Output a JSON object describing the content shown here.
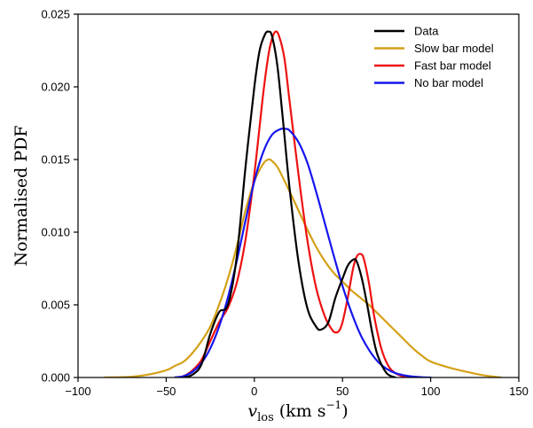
{
  "chart_data": {
    "type": "line",
    "xlabel": "v_los (km s⁻¹)",
    "xlabel_parts": {
      "symbol": "v",
      "subscript": "los",
      "unit_open": "(km s",
      "exponent": "−1",
      "unit_close": ")"
    },
    "ylabel": "Normalised PDF",
    "xlim": [
      -100,
      150
    ],
    "ylim": [
      0,
      0.025
    ],
    "x_ticks": [
      -100,
      -50,
      0,
      50,
      100,
      150
    ],
    "x_tick_labels": [
      "−100",
      "−50",
      "0",
      "50",
      "100",
      "150"
    ],
    "y_ticks": [
      0,
      0.005,
      0.01,
      0.015,
      0.02,
      0.025
    ],
    "y_tick_labels": [
      "0.000",
      "0.005",
      "0.010",
      "0.015",
      "0.020",
      "0.025"
    ],
    "grid": false,
    "legend_position": "top-right",
    "series": [
      {
        "name": "Data",
        "color": "#000000",
        "x": [
          -40,
          -35,
          -30,
          -25,
          -20,
          -15,
          -10,
          -5,
          0,
          3,
          6,
          8,
          10,
          13,
          16,
          20,
          25,
          30,
          35,
          38,
          42,
          46,
          50,
          53,
          56,
          58,
          61,
          64,
          67,
          70,
          75,
          80
        ],
        "y": [
          0,
          0.0002,
          0.0009,
          0.003,
          0.0045,
          0.005,
          0.0083,
          0.0145,
          0.02,
          0.0225,
          0.0236,
          0.0238,
          0.0235,
          0.0215,
          0.018,
          0.013,
          0.008,
          0.0048,
          0.0035,
          0.0033,
          0.0038,
          0.0055,
          0.0068,
          0.0077,
          0.0081,
          0.008,
          0.0068,
          0.005,
          0.003,
          0.0015,
          0.0003,
          0
        ]
      },
      {
        "name": "Slow bar model",
        "color": "#d4a017",
        "x": [
          -85,
          -70,
          -60,
          -50,
          -45,
          -40,
          -35,
          -30,
          -25,
          -20,
          -15,
          -10,
          -5,
          0,
          5,
          8,
          10,
          13,
          16,
          20,
          25,
          30,
          35,
          40,
          45,
          50,
          55,
          60,
          65,
          70,
          75,
          80,
          85,
          90,
          95,
          100,
          110,
          120,
          130,
          140
        ],
        "y": [
          0,
          5e-05,
          0.0002,
          0.0005,
          0.0008,
          0.0011,
          0.0017,
          0.0025,
          0.0035,
          0.005,
          0.0068,
          0.009,
          0.0115,
          0.0135,
          0.0147,
          0.015,
          0.0149,
          0.0145,
          0.0138,
          0.0128,
          0.0115,
          0.0102,
          0.009,
          0.008,
          0.0072,
          0.0066,
          0.006,
          0.0055,
          0.005,
          0.0044,
          0.0038,
          0.0032,
          0.0026,
          0.002,
          0.0015,
          0.0011,
          0.0007,
          0.0004,
          0.00015,
          0
        ]
      },
      {
        "name": "Fast bar model",
        "color": "#ee1111",
        "x": [
          -45,
          -40,
          -35,
          -30,
          -25,
          -20,
          -15,
          -10,
          -5,
          0,
          5,
          8,
          10,
          12,
          14,
          17,
          20,
          25,
          30,
          35,
          40,
          44,
          46,
          48,
          50,
          53,
          56,
          58,
          60,
          62,
          65,
          68,
          72,
          76,
          80,
          85,
          90
        ],
        "y": [
          0,
          0.0001,
          0.0005,
          0.0012,
          0.0025,
          0.0038,
          0.0048,
          0.0065,
          0.0095,
          0.014,
          0.0195,
          0.0222,
          0.0233,
          0.0238,
          0.0235,
          0.022,
          0.019,
          0.014,
          0.0095,
          0.0062,
          0.0042,
          0.0033,
          0.0031,
          0.0032,
          0.0038,
          0.0055,
          0.0075,
          0.0083,
          0.0085,
          0.0082,
          0.0065,
          0.0042,
          0.002,
          0.0008,
          0.0003,
          5e-05,
          0
        ]
      },
      {
        "name": "No bar model",
        "color": "#1515ee",
        "x": [
          -45,
          -40,
          -35,
          -30,
          -25,
          -20,
          -15,
          -10,
          -5,
          0,
          5,
          10,
          15,
          18,
          20,
          25,
          30,
          35,
          40,
          45,
          50,
          55,
          60,
          65,
          70,
          75,
          80,
          85,
          90,
          95,
          100
        ],
        "y": [
          0,
          0.0001,
          0.0004,
          0.001,
          0.002,
          0.0035,
          0.0055,
          0.008,
          0.0108,
          0.0135,
          0.0155,
          0.0167,
          0.0171,
          0.0171,
          0.017,
          0.0162,
          0.0148,
          0.0128,
          0.0106,
          0.0084,
          0.0063,
          0.0045,
          0.003,
          0.0019,
          0.0011,
          0.0006,
          0.0003,
          0.00015,
          6e-05,
          2e-05,
          0
        ]
      }
    ]
  }
}
